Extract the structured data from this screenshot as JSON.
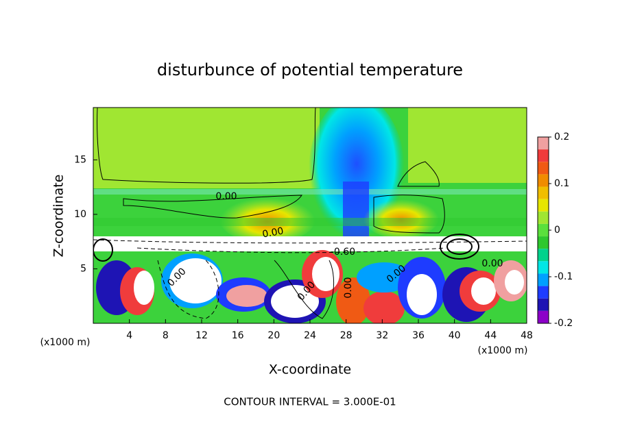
{
  "chart_data": {
    "type": "contour",
    "title": "disturbunce of potential temperature",
    "xlabel": "X-coordinate",
    "ylabel": "Z-coordinate",
    "x_unit_label": "(x1000 m)",
    "y_unit_label": "(x1000 m)",
    "xlim": [
      0,
      48
    ],
    "xticks": [
      4,
      8,
      12,
      16,
      20,
      24,
      28,
      32,
      36,
      40,
      44,
      48
    ],
    "ylim": [
      0,
      19.8
    ],
    "yticks": [
      5,
      10,
      15
    ],
    "colorbar": {
      "lim": [
        -0.2,
        0.2
      ],
      "ticks": [
        0.2,
        0.1,
        0,
        -0.1,
        -0.2
      ],
      "colors": [
        "#f0a0a0",
        "#f03c3c",
        "#f05a14",
        "#f08c00",
        "#f0be00",
        "#e6e600",
        "#a0e632",
        "#5ae03c",
        "#2ec82e",
        "#00d28c",
        "#00e6e6",
        "#00a0ff",
        "#1e3cff",
        "#1e14b4",
        "#8c00c8"
      ]
    },
    "contour_labels": [
      "0.00",
      "0.00",
      "0.00",
      "0.00",
      "-0.60",
      "0.00",
      "0.00",
      "0.00"
    ],
    "footer": "CONTOUR INTERVAL = 3.000E-01"
  }
}
